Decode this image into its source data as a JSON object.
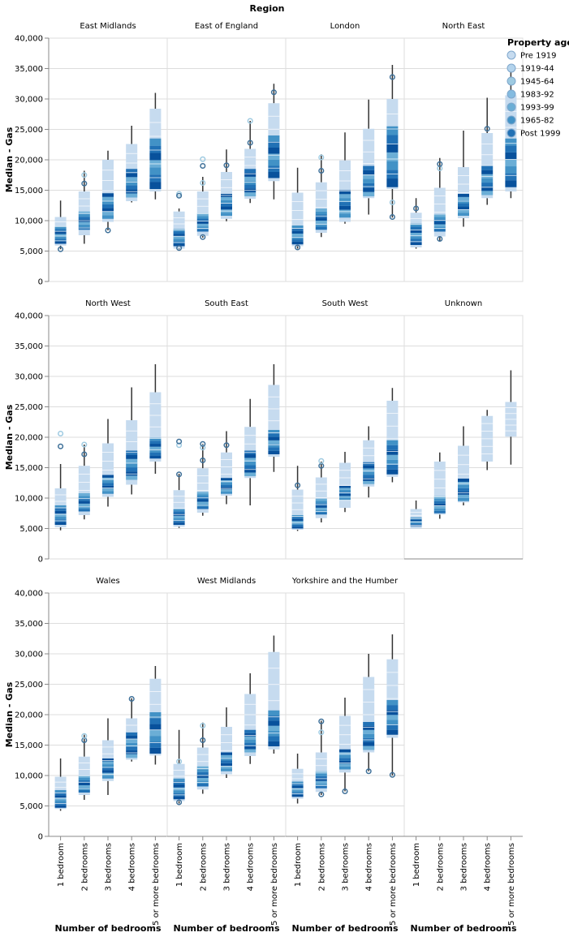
{
  "chart_data": {
    "type": "boxplot",
    "title": "Region",
    "ylabel": "Median - Gas",
    "xlabel": "Number of bedrooms",
    "ylim": [
      0,
      40000
    ],
    "y_ticks": [
      0,
      5000,
      10000,
      15000,
      20000,
      25000,
      30000,
      35000,
      40000
    ],
    "y_tick_labels": [
      "0",
      "5,000",
      "10,000",
      "15,000",
      "20,000",
      "25,000",
      "30,000",
      "35,000",
      "40,000"
    ],
    "categories": [
      "1 bedroom",
      "2 bedrooms",
      "3 bedrooms",
      "4 bedrooms",
      "5 or more bedrooms"
    ],
    "grid": true,
    "legend": {
      "title": "Property age",
      "placement": "top-right",
      "items": [
        "Pre 1919",
        "1919-44",
        "1945-64",
        "1983-92",
        "1993-99",
        "1965-82",
        "Post 1999"
      ],
      "colors": [
        "#c6dbef",
        "#b3d3ec",
        "#9ecae1",
        "#84bbe0",
        "#6baed6",
        "#4292c6",
        "#2171b5"
      ]
    },
    "panels": [
      {
        "region": "East Midlands",
        "boxes": [
          {
            "category": "1 bedroom",
            "q1": 5900,
            "q3": 10600,
            "lower": 5300,
            "upper": 13300,
            "outliers": [
              5300
            ],
            "dark_range": [
              6200,
              9000
            ]
          },
          {
            "category": "2 bedrooms",
            "q1": 7600,
            "q3": 14800,
            "lower": 6200,
            "upper": 18200,
            "outliers": [
              16100,
              17500
            ],
            "dark_range": [
              8500,
              11500
            ]
          },
          {
            "category": "3 bedrooms",
            "q1": 9800,
            "q3": 20000,
            "lower": 8400,
            "upper": 21500,
            "outliers": [
              8400
            ],
            "dark_range": [
              10300,
              14500
            ]
          },
          {
            "category": "4 bedrooms",
            "q1": 13200,
            "q3": 22600,
            "lower": 13000,
            "upper": 25600,
            "outliers": [],
            "dark_range": [
              13800,
              18500
            ]
          },
          {
            "category": "5 or more bedrooms",
            "q1": 14800,
            "q3": 28400,
            "lower": 13500,
            "upper": 31000,
            "outliers": [],
            "dark_range": [
              15200,
              23500
            ]
          }
        ]
      },
      {
        "region": "East of England",
        "boxes": [
          {
            "category": "1 bedroom",
            "q1": 5400,
            "q3": 11500,
            "lower": 5300,
            "upper": 12000,
            "outliers": [
              5500,
              14400,
              14100
            ],
            "dark_range": [
              5800,
              8600
            ]
          },
          {
            "category": "2 bedrooms",
            "q1": 7500,
            "q3": 14800,
            "lower": 7200,
            "upper": 17200,
            "outliers": [
              7300,
              16200,
              19000,
              20100
            ],
            "dark_range": [
              8200,
              11200
            ]
          },
          {
            "category": "3 bedrooms",
            "q1": 10300,
            "q3": 18000,
            "lower": 9900,
            "upper": 21700,
            "outliers": [
              19100
            ],
            "dark_range": [
              10800,
              14400
            ]
          },
          {
            "category": "4 bedrooms",
            "q1": 13600,
            "q3": 21800,
            "lower": 12900,
            "upper": 26400,
            "outliers": [
              22800,
              26400
            ],
            "dark_range": [
              14000,
              18500
            ]
          },
          {
            "category": "5 or more bedrooms",
            "q1": 16500,
            "q3": 29300,
            "lower": 13500,
            "upper": 32500,
            "outliers": [
              31100
            ],
            "dark_range": [
              17000,
              24000
            ]
          }
        ]
      },
      {
        "region": "London",
        "boxes": [
          {
            "category": "1 bedroom",
            "q1": 5800,
            "q3": 14600,
            "lower": 5400,
            "upper": 18700,
            "outliers": [
              5600
            ],
            "dark_range": [
              6100,
              9200
            ]
          },
          {
            "category": "2 bedrooms",
            "q1": 8000,
            "q3": 16300,
            "lower": 7300,
            "upper": 20900,
            "outliers": [
              18200,
              20400
            ],
            "dark_range": [
              8500,
              12000
            ]
          },
          {
            "category": "3 bedrooms",
            "q1": 9800,
            "q3": 19900,
            "lower": 9500,
            "upper": 24500,
            "outliers": [],
            "dark_range": [
              10500,
              15000
            ]
          },
          {
            "category": "4 bedrooms",
            "q1": 13700,
            "q3": 25100,
            "lower": 11000,
            "upper": 29900,
            "outliers": [],
            "dark_range": [
              14000,
              19000
            ]
          },
          {
            "category": "5 or more bedrooms",
            "q1": 15200,
            "q3": 30000,
            "lower": 10500,
            "upper": 35600,
            "outliers": [
              10600,
              13000,
              33600
            ],
            "dark_range": [
              15500,
              25500
            ]
          }
        ]
      },
      {
        "region": "North East",
        "boxes": [
          {
            "category": "1 bedroom",
            "q1": 5600,
            "q3": 11300,
            "lower": 5400,
            "upper": 13700,
            "outliers": [
              12000
            ],
            "dark_range": [
              6000,
              9500
            ]
          },
          {
            "category": "2 bedrooms",
            "q1": 7400,
            "q3": 15400,
            "lower": 6700,
            "upper": 20300,
            "outliers": [
              7000,
              18600,
              19300
            ],
            "dark_range": [
              8200,
              11000
            ]
          },
          {
            "category": "3 bedrooms",
            "q1": 10400,
            "q3": 18800,
            "lower": 9000,
            "upper": 24800,
            "outliers": [],
            "dark_range": [
              10800,
              14400
            ]
          },
          {
            "category": "4 bedrooms",
            "q1": 13700,
            "q3": 24400,
            "lower": 12600,
            "upper": 30200,
            "outliers": [
              25100
            ],
            "dark_range": [
              14200,
              19000
            ]
          },
          {
            "category": "5 or more bedrooms",
            "q1": 14800,
            "q3": 30600,
            "lower": 13700,
            "upper": 34700,
            "outliers": [],
            "dark_range": [
              15500,
              23500
            ]
          }
        ]
      },
      {
        "region": "North West",
        "boxes": [
          {
            "category": "1 bedroom",
            "q1": 5200,
            "q3": 11600,
            "lower": 4700,
            "upper": 15600,
            "outliers": [
              18500,
              20600
            ],
            "dark_range": [
              5600,
              8800
            ]
          },
          {
            "category": "2 bedrooms",
            "q1": 7200,
            "q3": 15300,
            "lower": 6500,
            "upper": 18800,
            "outliers": [
              17200,
              18800
            ],
            "dark_range": [
              7800,
              10800
            ]
          },
          {
            "category": "3 bedrooms",
            "q1": 10200,
            "q3": 19000,
            "lower": 8600,
            "upper": 23000,
            "outliers": [],
            "dark_range": [
              10700,
              13800
            ]
          },
          {
            "category": "4 bedrooms",
            "q1": 12200,
            "q3": 22800,
            "lower": 10600,
            "upper": 28200,
            "outliers": [],
            "dark_range": [
              13000,
              17800
            ]
          },
          {
            "category": "5 or more bedrooms",
            "q1": 16000,
            "q3": 27400,
            "lower": 14000,
            "upper": 32000,
            "outliers": [],
            "dark_range": [
              16500,
              19900
            ]
          }
        ]
      },
      {
        "region": "South East",
        "boxes": [
          {
            "category": "1 bedroom",
            "q1": 5300,
            "q3": 11300,
            "lower": 5100,
            "upper": 14000,
            "outliers": [
              13900,
              18700,
              19300
            ],
            "dark_range": [
              5600,
              8200
            ]
          },
          {
            "category": "2 bedrooms",
            "q1": 7600,
            "q3": 14900,
            "lower": 7100,
            "upper": 18900,
            "outliers": [
              16200,
              18300,
              18900
            ],
            "dark_range": [
              8200,
              11000
            ]
          },
          {
            "category": "3 bedrooms",
            "q1": 10400,
            "q3": 17500,
            "lower": 9000,
            "upper": 21000,
            "outliers": [
              18700
            ],
            "dark_range": [
              10700,
              13300
            ]
          },
          {
            "category": "4 bedrooms",
            "q1": 13300,
            "q3": 21700,
            "lower": 8800,
            "upper": 26300,
            "outliers": [],
            "dark_range": [
              13600,
              17800
            ]
          },
          {
            "category": "5 or more bedrooms",
            "q1": 16800,
            "q3": 28600,
            "lower": 14300,
            "upper": 32000,
            "outliers": [],
            "dark_range": [
              17200,
              21200
            ]
          }
        ]
      },
      {
        "region": "South West",
        "boxes": [
          {
            "category": "1 bedroom",
            "q1": 4800,
            "q3": 11400,
            "lower": 4600,
            "upper": 15300,
            "outliers": [
              12100
            ],
            "dark_range": [
              5000,
              7200
            ]
          },
          {
            "category": "2 bedrooms",
            "q1": 6700,
            "q3": 13400,
            "lower": 6000,
            "upper": 16000,
            "outliers": [
              15300,
              16100
            ],
            "dark_range": [
              7300,
              9900
            ]
          },
          {
            "category": "3 bedrooms",
            "q1": 8400,
            "q3": 15800,
            "lower": 7700,
            "upper": 17600,
            "outliers": [],
            "dark_range": [
              9700,
              12000
            ]
          },
          {
            "category": "4 bedrooms",
            "q1": 11900,
            "q3": 19500,
            "lower": 10100,
            "upper": 21800,
            "outliers": [],
            "dark_range": [
              12300,
              15900
            ]
          },
          {
            "category": "5 or more bedrooms",
            "q1": 13500,
            "q3": 26000,
            "lower": 12600,
            "upper": 28100,
            "outliers": [],
            "dark_range": [
              13900,
              19500
            ]
          }
        ]
      },
      {
        "region": "Unknown",
        "boxes": [
          {
            "category": "1 bedroom",
            "q1": 5000,
            "q3": 8200,
            "lower": 5000,
            "upper": 9600,
            "outliers": [],
            "dark_range": [
              5400,
              6800
            ]
          },
          {
            "category": "2 bedrooms",
            "q1": 7300,
            "q3": 16000,
            "lower": 6600,
            "upper": 17500,
            "outliers": [],
            "dark_range": [
              7500,
              10300
            ]
          },
          {
            "category": "3 bedrooms",
            "q1": 9300,
            "q3": 18600,
            "lower": 8800,
            "upper": 21800,
            "outliers": [],
            "dark_range": [
              9500,
              13200
            ]
          },
          {
            "category": "4 bedrooms",
            "q1": 16000,
            "q3": 23500,
            "lower": 14600,
            "upper": 24500,
            "outliers": [],
            "dark_range": []
          },
          {
            "category": "5 or more bedrooms",
            "q1": 20100,
            "q3": 25800,
            "lower": 15500,
            "upper": 31000,
            "outliers": [],
            "dark_range": []
          }
        ]
      },
      {
        "region": "Wales",
        "boxes": [
          {
            "category": "1 bedroom",
            "q1": 4500,
            "q3": 9800,
            "lower": 4200,
            "upper": 12800,
            "outliers": [],
            "dark_range": [
              4700,
              7600
            ]
          },
          {
            "category": "2 bedrooms",
            "q1": 6800,
            "q3": 13100,
            "lower": 6000,
            "upper": 16700,
            "outliers": [
              15800,
              16500
            ],
            "dark_range": [
              7200,
              10000
            ]
          },
          {
            "category": "3 bedrooms",
            "q1": 9100,
            "q3": 15800,
            "lower": 6800,
            "upper": 19400,
            "outliers": [],
            "dark_range": [
              9500,
              12800
            ]
          },
          {
            "category": "4 bedrooms",
            "q1": 12600,
            "q3": 19400,
            "lower": 12300,
            "upper": 22700,
            "outliers": [
              22600
            ],
            "dark_range": [
              12900,
              17200
            ]
          },
          {
            "category": "5 or more bedrooms",
            "q1": 13300,
            "q3": 25900,
            "lower": 11800,
            "upper": 28000,
            "outliers": [],
            "dark_range": [
              13600,
              20400
            ]
          }
        ]
      },
      {
        "region": "West Midlands",
        "boxes": [
          {
            "category": "1 bedroom",
            "q1": 5800,
            "q3": 11900,
            "lower": 5400,
            "upper": 17500,
            "outliers": [
              5600,
              12300
            ],
            "dark_range": [
              6100,
              9500
            ]
          },
          {
            "category": "2 bedrooms",
            "q1": 7700,
            "q3": 14600,
            "lower": 7000,
            "upper": 18700,
            "outliers": [
              15800,
              18200
            ],
            "dark_range": [
              8200,
              11500
            ]
          },
          {
            "category": "3 bedrooms",
            "q1": 10200,
            "q3": 18000,
            "lower": 9600,
            "upper": 21200,
            "outliers": [],
            "dark_range": [
              10700,
              13800
            ]
          },
          {
            "category": "4 bedrooms",
            "q1": 13200,
            "q3": 23400,
            "lower": 11900,
            "upper": 26800,
            "outliers": [],
            "dark_range": [
              13800,
              17500
            ]
          },
          {
            "category": "5 or more bedrooms",
            "q1": 14300,
            "q3": 30300,
            "lower": 13600,
            "upper": 33000,
            "outliers": [],
            "dark_range": [
              14800,
              20700
            ]
          }
        ]
      },
      {
        "region": "Yorkshire and the Humber",
        "boxes": [
          {
            "category": "1 bedroom",
            "q1": 6200,
            "q3": 11100,
            "lower": 5400,
            "upper": 13600,
            "outliers": [],
            "dark_range": [
              6500,
              9000
            ]
          },
          {
            "category": "2 bedrooms",
            "q1": 7300,
            "q3": 13800,
            "lower": 6800,
            "upper": 19000,
            "outliers": [
              6900,
              17100,
              18900
            ],
            "dark_range": [
              7900,
              10700
            ]
          },
          {
            "category": "3 bedrooms",
            "q1": 10500,
            "q3": 19800,
            "lower": 7400,
            "upper": 22800,
            "outliers": [
              7400
            ],
            "dark_range": [
              11000,
              14300
            ]
          },
          {
            "category": "4 bedrooms",
            "q1": 13800,
            "q3": 26200,
            "lower": 10700,
            "upper": 30000,
            "outliers": [
              10700
            ],
            "dark_range": [
              14200,
              18800
            ]
          },
          {
            "category": "5 or more bedrooms",
            "q1": 16200,
            "q3": 29100,
            "lower": 10000,
            "upper": 33200,
            "outliers": [
              10100
            ],
            "dark_range": [
              16700,
              22400
            ]
          }
        ]
      }
    ]
  }
}
